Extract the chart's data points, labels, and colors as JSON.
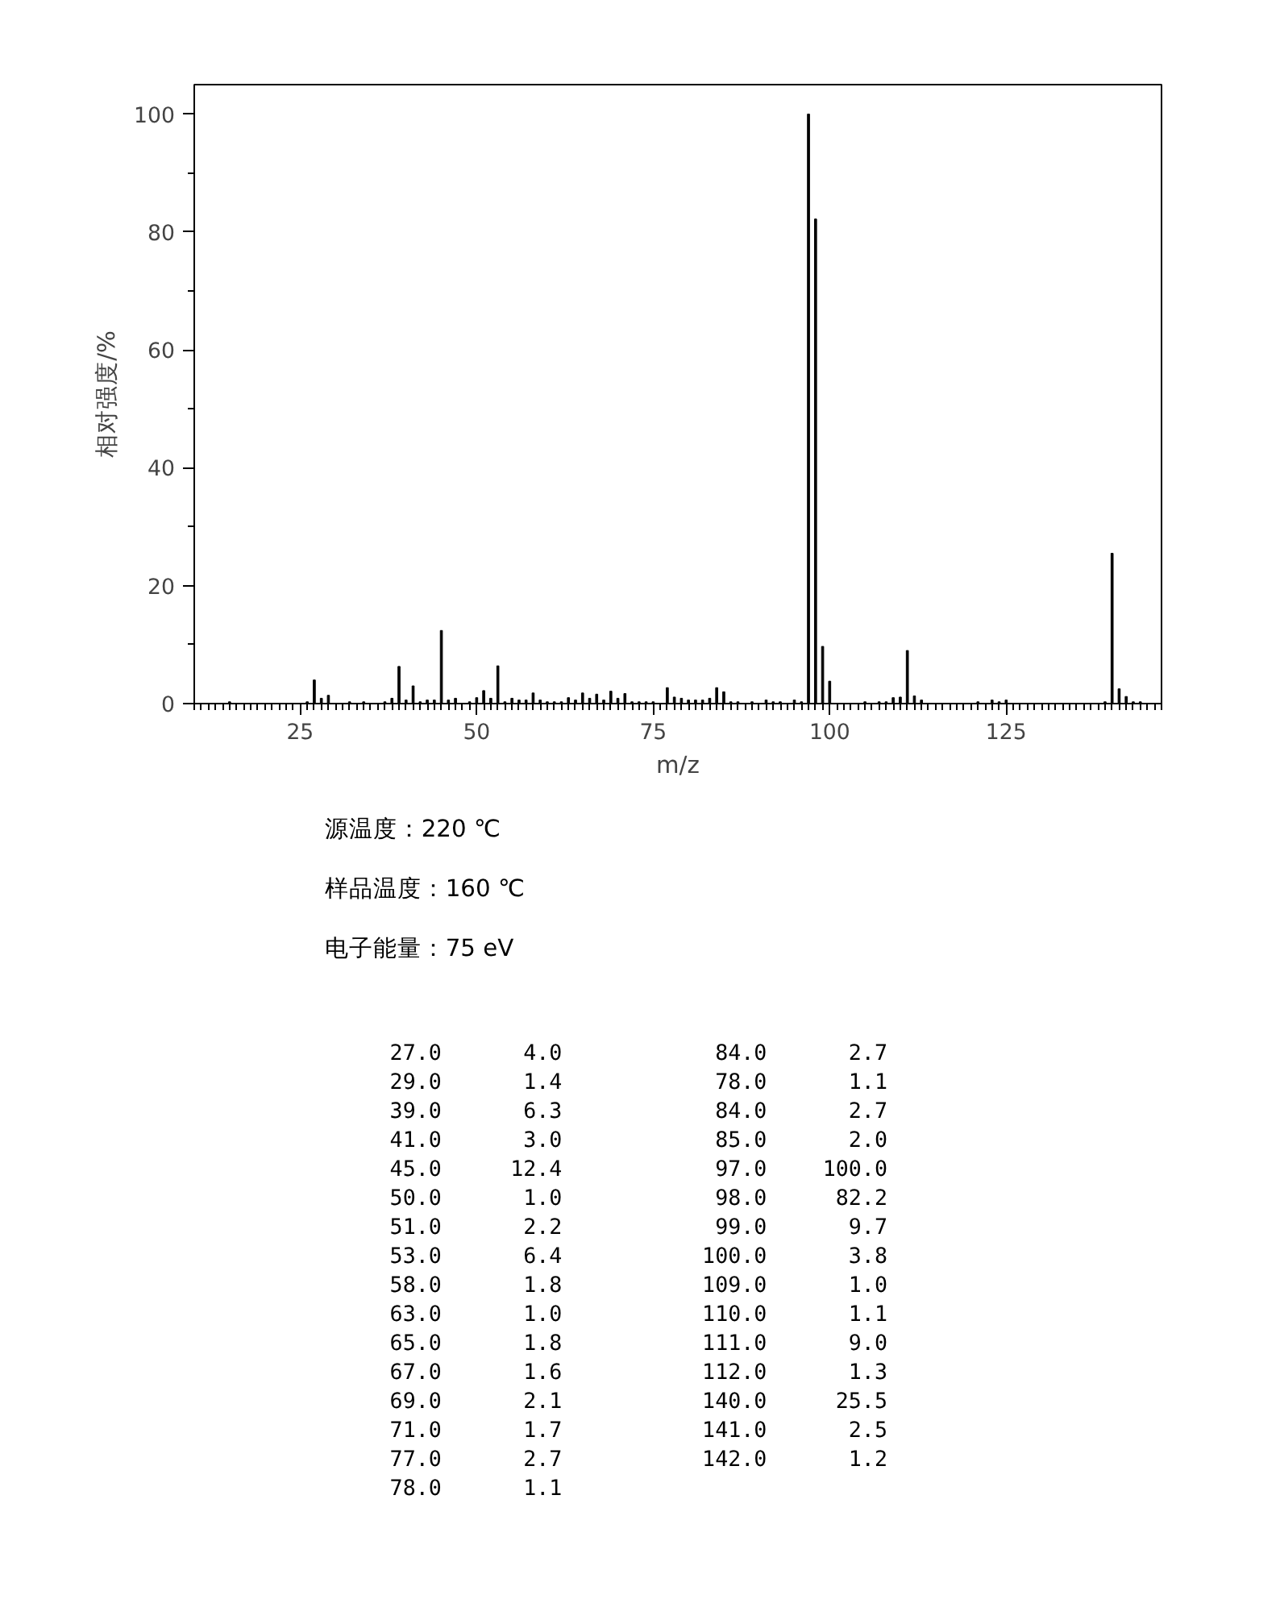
{
  "chart_data": {
    "type": "bar",
    "xlabel": "m/z",
    "ylabel": "相对强度/%",
    "x": [
      15,
      26,
      27,
      28,
      29,
      32,
      34,
      37,
      38,
      39,
      40,
      41,
      42,
      43,
      44,
      45,
      46,
      47,
      49,
      50,
      51,
      52,
      53,
      54,
      55,
      56,
      57,
      58,
      59,
      60,
      61,
      62,
      63,
      64,
      65,
      66,
      67,
      68,
      69,
      70,
      71,
      72,
      73,
      74,
      75,
      77,
      78,
      79,
      80,
      81,
      82,
      83,
      84,
      85,
      86,
      87,
      89,
      91,
      92,
      93,
      95,
      96,
      97,
      98,
      99,
      100,
      105,
      107,
      108,
      109,
      110,
      111,
      112,
      113,
      121,
      123,
      124,
      125,
      139,
      140,
      141,
      142,
      143,
      144
    ],
    "values": [
      0.3,
      0.3,
      4.0,
      0.9,
      1.4,
      0.3,
      0.3,
      0.3,
      0.9,
      6.3,
      0.6,
      3.0,
      0.3,
      0.6,
      0.6,
      12.4,
      0.6,
      0.9,
      0.3,
      1.0,
      2.2,
      0.9,
      6.4,
      0.3,
      0.9,
      0.6,
      0.6,
      1.8,
      0.6,
      0.3,
      0.3,
      0.3,
      1.0,
      0.6,
      1.8,
      0.9,
      1.6,
      0.6,
      2.1,
      0.9,
      1.7,
      0.3,
      0.3,
      0.3,
      0.3,
      2.7,
      1.1,
      0.9,
      0.6,
      0.6,
      0.6,
      0.9,
      2.7,
      2.0,
      0.3,
      0.3,
      0.3,
      0.6,
      0.3,
      0.3,
      0.6,
      0.3,
      100.0,
      82.2,
      9.7,
      3.8,
      0.3,
      0.3,
      0.3,
      1.0,
      1.1,
      9.0,
      1.3,
      0.6,
      0.3,
      0.6,
      0.3,
      0.6,
      0.3,
      25.5,
      2.5,
      1.2,
      0.3,
      0.3
    ],
    "color": "#000000",
    "xlim": [
      10,
      147
    ],
    "xticks": [
      25,
      50,
      75,
      100,
      125
    ],
    "ylim": [
      0,
      105
    ],
    "yticks": [
      0,
      20,
      40,
      60,
      80,
      100
    ],
    "grid": false,
    "annotations": [
      "源温度：220 ℃",
      "样品温度：160 ℃",
      "电子能量：75 eV",
      "27.0 4.0",
      "29.0 1.4",
      "39.0 6.3",
      "41.0 3.0",
      "45.0 12.4",
      "50.0 1.0",
      "51.0 2.2",
      "53.0 6.4",
      "58.0 1.8",
      "63.0 1.0",
      "65.0 1.8",
      "67.0 1.6",
      "69.0 2.1",
      "71.0 1.7",
      "77.0 2.7",
      "78.0 1.1",
      "84.0 2.7",
      "78.0 1.1",
      "84.0 2.7",
      "85.0 2.0",
      "97.0 100.0",
      "98.0 82.2",
      "99.0 9.7",
      "100.0 3.8",
      "109.0 1.0",
      "110.0 1.1",
      "111.0 9.0",
      "112.0 1.3",
      "140.0 25.5",
      "141.0 2.5",
      "142.0 1.2"
    ]
  }
}
